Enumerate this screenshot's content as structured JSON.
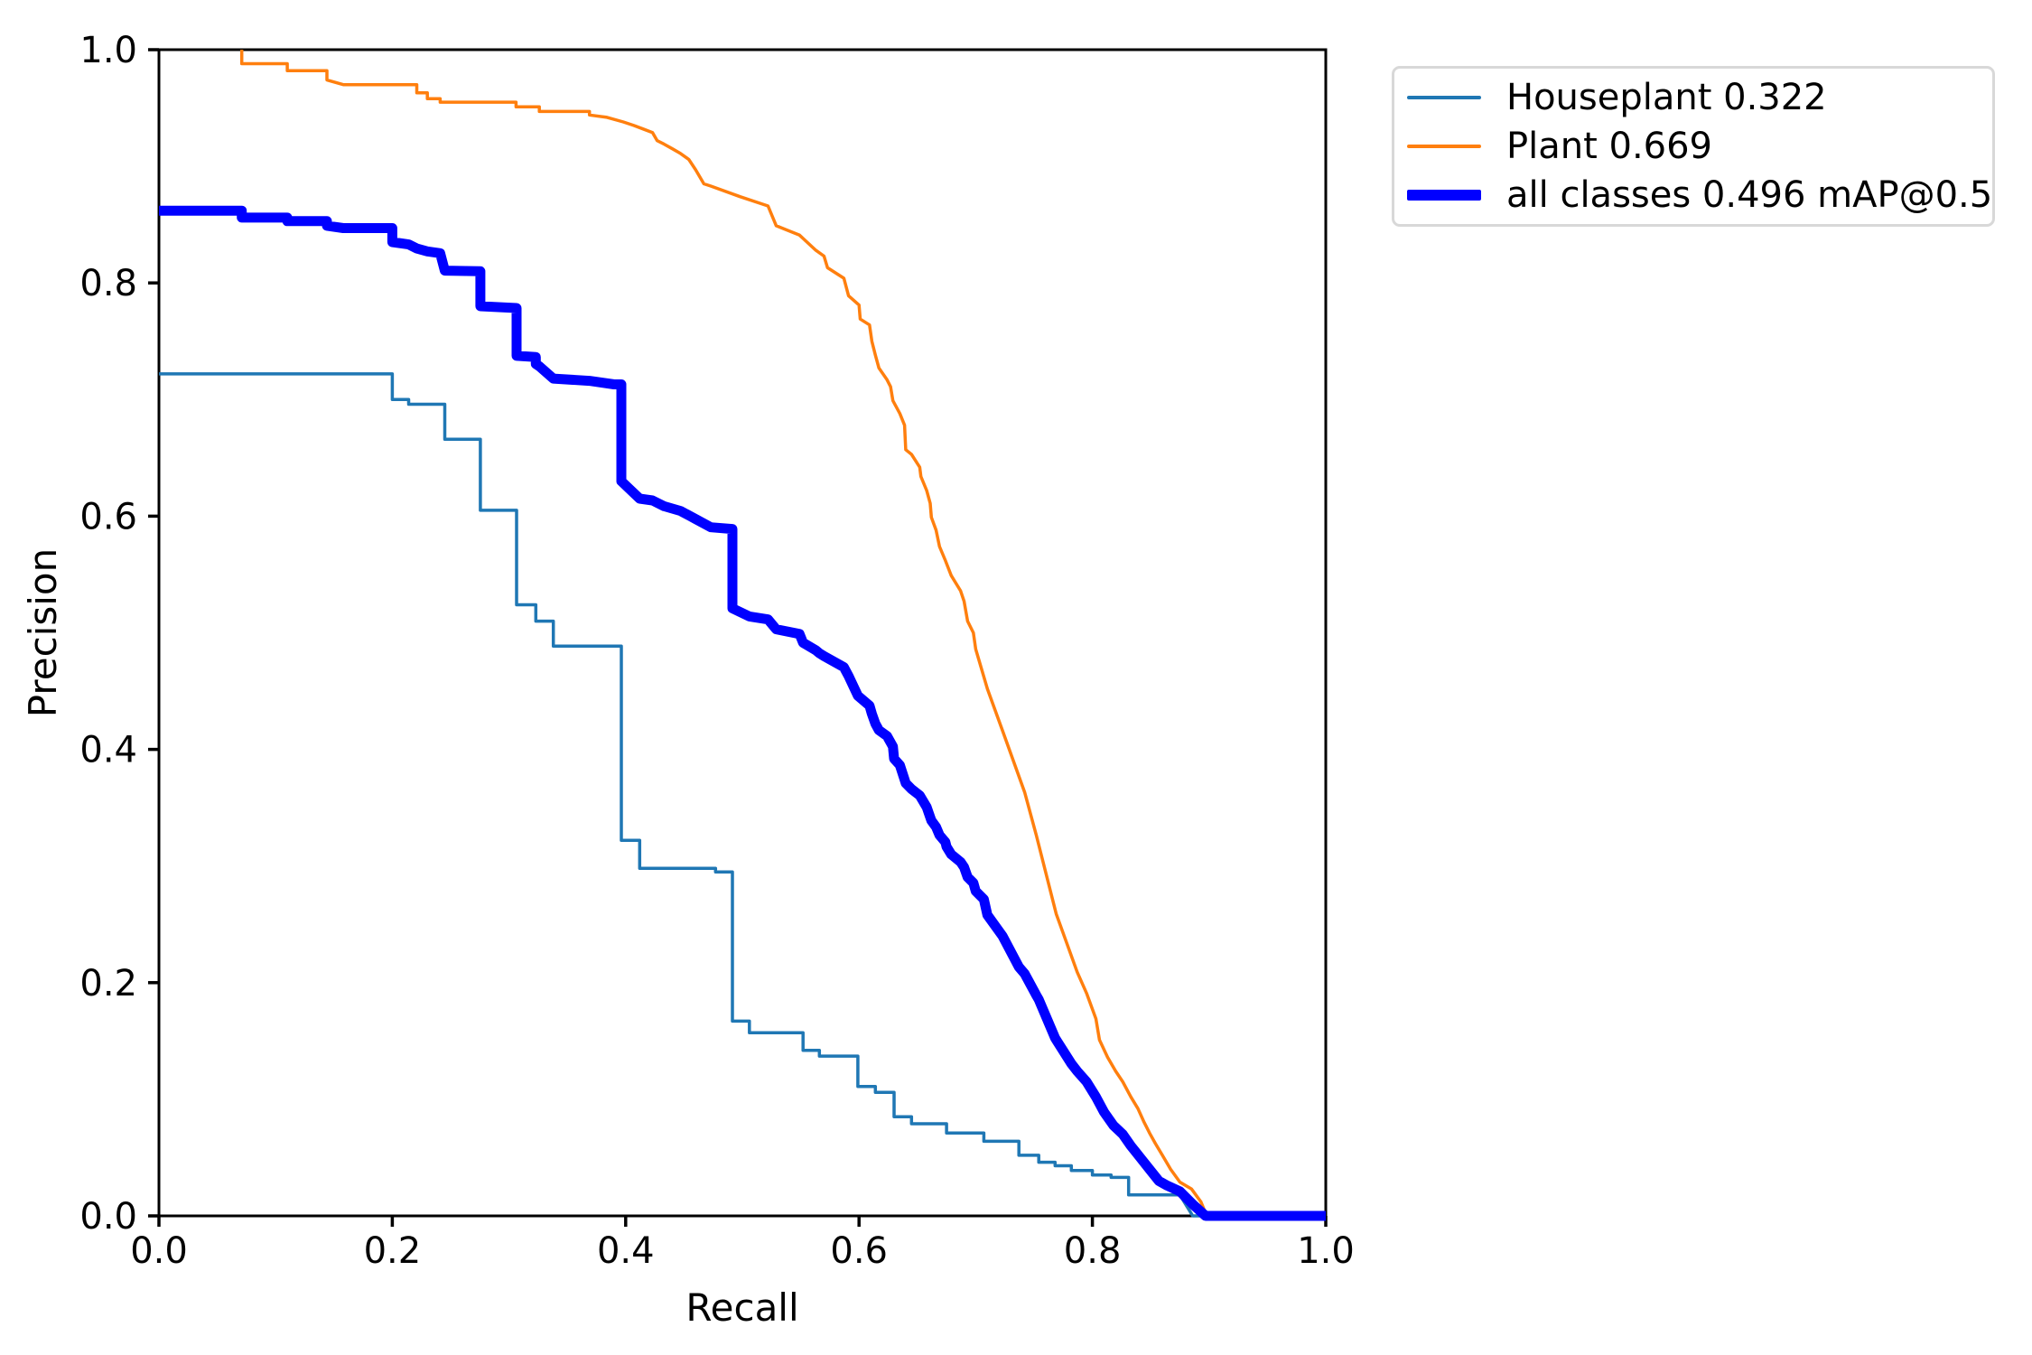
{
  "chart_data": {
    "type": "line",
    "subtype": "precision-recall-curve",
    "title": "",
    "xlabel": "Recall",
    "ylabel": "Precision",
    "xlim": [
      0.0,
      1.0
    ],
    "ylim": [
      0.0,
      1.0
    ],
    "xtick_labels": [
      "0.0",
      "0.2",
      "0.4",
      "0.6",
      "0.8",
      "1.0"
    ],
    "ytick_labels": [
      "0.0",
      "0.2",
      "0.4",
      "0.6",
      "0.8",
      "1.0"
    ],
    "grid": false,
    "legend_position": "outside-upper-right",
    "metric": "mAP@0.5",
    "map_at_05": 0.496,
    "series": [
      {
        "name": "Houseplant",
        "label": "Houseplant 0.322",
        "ap": 0.322,
        "color": "#1f77b4",
        "line_weight": "thin",
        "points": [
          [
            0,
            0.722
          ],
          [
            0.2,
            0.722
          ],
          [
            0.2,
            0.7
          ],
          [
            0.214,
            0.7
          ],
          [
            0.214,
            0.696
          ],
          [
            0.245,
            0.696
          ],
          [
            0.245,
            0.666
          ],
          [
            0.2755,
            0.666
          ],
          [
            0.2755,
            0.605
          ],
          [
            0.3065,
            0.605
          ],
          [
            0.3065,
            0.524
          ],
          [
            0.323,
            0.524
          ],
          [
            0.323,
            0.51
          ],
          [
            0.338,
            0.51
          ],
          [
            0.338,
            0.4885
          ],
          [
            0.3963,
            0.4885
          ],
          [
            0.3963,
            0.322
          ],
          [
            0.412,
            0.322
          ],
          [
            0.412,
            0.298
          ],
          [
            0.477,
            0.298
          ],
          [
            0.477,
            0.295
          ],
          [
            0.4915,
            0.295
          ],
          [
            0.4915,
            0.167
          ],
          [
            0.506,
            0.167
          ],
          [
            0.506,
            0.157
          ],
          [
            0.552,
            0.157
          ],
          [
            0.552,
            0.142
          ],
          [
            0.566,
            0.142
          ],
          [
            0.566,
            0.137
          ],
          [
            0.599,
            0.137
          ],
          [
            0.599,
            0.111
          ],
          [
            0.614,
            0.111
          ],
          [
            0.614,
            0.106
          ],
          [
            0.63,
            0.106
          ],
          [
            0.63,
            0.085
          ],
          [
            0.645,
            0.085
          ],
          [
            0.645,
            0.079
          ],
          [
            0.675,
            0.079
          ],
          [
            0.675,
            0.071
          ],
          [
            0.707,
            0.071
          ],
          [
            0.707,
            0.064
          ],
          [
            0.737,
            0.064
          ],
          [
            0.737,
            0.052
          ],
          [
            0.754,
            0.052
          ],
          [
            0.754,
            0.046
          ],
          [
            0.768,
            0.046
          ],
          [
            0.768,
            0.043
          ],
          [
            0.782,
            0.043
          ],
          [
            0.782,
            0.039
          ],
          [
            0.8,
            0.039
          ],
          [
            0.8,
            0.035
          ],
          [
            0.816,
            0.035
          ],
          [
            0.816,
            0.033
          ],
          [
            0.831,
            0.033
          ],
          [
            0.831,
            0.018
          ],
          [
            0.875,
            0.018
          ],
          [
            0.886,
            0.0
          ],
          [
            1.0,
            0.0
          ]
        ]
      },
      {
        "name": "Plant",
        "label": "Plant 0.669",
        "ap": 0.669,
        "color": "#ff7f0e",
        "line_weight": "thin",
        "points": [
          [
            0.071,
            1.0
          ],
          [
            0.071,
            0.988
          ],
          [
            0.11,
            0.988
          ],
          [
            0.11,
            0.982
          ],
          [
            0.144,
            0.982
          ],
          [
            0.144,
            0.974
          ],
          [
            0.158,
            0.97
          ],
          [
            0.221,
            0.97
          ],
          [
            0.221,
            0.963
          ],
          [
            0.23,
            0.963
          ],
          [
            0.23,
            0.958
          ],
          [
            0.241,
            0.958
          ],
          [
            0.241,
            0.955
          ],
          [
            0.306,
            0.955
          ],
          [
            0.306,
            0.951
          ],
          [
            0.326,
            0.951
          ],
          [
            0.326,
            0.947
          ],
          [
            0.369,
            0.947
          ],
          [
            0.369,
            0.944
          ],
          [
            0.384,
            0.942
          ],
          [
            0.398,
            0.938
          ],
          [
            0.407,
            0.935
          ],
          [
            0.415,
            0.932
          ],
          [
            0.423,
            0.929
          ],
          [
            0.427,
            0.922
          ],
          [
            0.433,
            0.919
          ],
          [
            0.44,
            0.915
          ],
          [
            0.447,
            0.911
          ],
          [
            0.454,
            0.906
          ],
          [
            0.46,
            0.897
          ],
          [
            0.467,
            0.885
          ],
          [
            0.473,
            0.883
          ],
          [
            0.498,
            0.874
          ],
          [
            0.522,
            0.866
          ],
          [
            0.529,
            0.849
          ],
          [
            0.549,
            0.841
          ],
          [
            0.563,
            0.828
          ],
          [
            0.57,
            0.823
          ],
          [
            0.573,
            0.813
          ],
          [
            0.587,
            0.804
          ],
          [
            0.591,
            0.789
          ],
          [
            0.6,
            0.781
          ],
          [
            0.601,
            0.769
          ],
          [
            0.609,
            0.764
          ],
          [
            0.611,
            0.75
          ],
          [
            0.614,
            0.738
          ],
          [
            0.617,
            0.727
          ],
          [
            0.624,
            0.717
          ],
          [
            0.627,
            0.711
          ],
          [
            0.629,
            0.699
          ],
          [
            0.635,
            0.688
          ],
          [
            0.639,
            0.678
          ],
          [
            0.64,
            0.657
          ],
          [
            0.645,
            0.653
          ],
          [
            0.652,
            0.642
          ],
          [
            0.653,
            0.634
          ],
          [
            0.658,
            0.622
          ],
          [
            0.661,
            0.611
          ],
          [
            0.662,
            0.599
          ],
          [
            0.666,
            0.588
          ],
          [
            0.669,
            0.574
          ],
          [
            0.674,
            0.562
          ],
          [
            0.679,
            0.549
          ],
          [
            0.687,
            0.536
          ],
          [
            0.69,
            0.527
          ],
          [
            0.693,
            0.51
          ],
          [
            0.698,
            0.5
          ],
          [
            0.7,
            0.486
          ],
          [
            0.71,
            0.452
          ],
          [
            0.723,
            0.416
          ],
          [
            0.742,
            0.363
          ],
          [
            0.752,
            0.326
          ],
          [
            0.769,
            0.259
          ],
          [
            0.787,
            0.209
          ],
          [
            0.795,
            0.191
          ],
          [
            0.803,
            0.169
          ],
          [
            0.806,
            0.151
          ],
          [
            0.813,
            0.136
          ],
          [
            0.82,
            0.124
          ],
          [
            0.826,
            0.115
          ],
          [
            0.833,
            0.102
          ],
          [
            0.839,
            0.092
          ],
          [
            0.844,
            0.081
          ],
          [
            0.849,
            0.071
          ],
          [
            0.854,
            0.062
          ],
          [
            0.86,
            0.052
          ],
          [
            0.867,
            0.04
          ],
          [
            0.875,
            0.029
          ],
          [
            0.885,
            0.023
          ],
          [
            0.893,
            0.012
          ],
          [
            0.898,
            0.0
          ],
          [
            1.0,
            0.0
          ]
        ]
      },
      {
        "name": "all classes",
        "label": "all classes 0.496 mAP@0.5",
        "ap": 0.496,
        "color": "#0000ff",
        "line_weight": "thick",
        "points": [
          [
            0,
            0.862
          ],
          [
            0.071,
            0.862
          ],
          [
            0.071,
            0.856
          ],
          [
            0.11,
            0.856
          ],
          [
            0.11,
            0.853
          ],
          [
            0.144,
            0.853
          ],
          [
            0.144,
            0.849
          ],
          [
            0.158,
            0.847
          ],
          [
            0.2,
            0.847
          ],
          [
            0.2,
            0.835
          ],
          [
            0.214,
            0.833
          ],
          [
            0.221,
            0.8295
          ],
          [
            0.23,
            0.827
          ],
          [
            0.241,
            0.8255
          ],
          [
            0.245,
            0.8105
          ],
          [
            0.2755,
            0.81
          ],
          [
            0.2755,
            0.78
          ],
          [
            0.3065,
            0.7785
          ],
          [
            0.3065,
            0.7375
          ],
          [
            0.323,
            0.7365
          ],
          [
            0.323,
            0.7305
          ],
          [
            0.326,
            0.7285
          ],
          [
            0.338,
            0.718
          ],
          [
            0.369,
            0.716
          ],
          [
            0.39,
            0.713
          ],
          [
            0.3963,
            0.713
          ],
          [
            0.3963,
            0.63
          ],
          [
            0.412,
            0.615
          ],
          [
            0.423,
            0.6135
          ],
          [
            0.433,
            0.6085
          ],
          [
            0.447,
            0.6045
          ],
          [
            0.46,
            0.5975
          ],
          [
            0.473,
            0.5905
          ],
          [
            0.4915,
            0.589
          ],
          [
            0.4915,
            0.521
          ],
          [
            0.506,
            0.514
          ],
          [
            0.522,
            0.5115
          ],
          [
            0.529,
            0.503
          ],
          [
            0.549,
            0.499
          ],
          [
            0.552,
            0.4915
          ],
          [
            0.563,
            0.485
          ],
          [
            0.566,
            0.4825
          ],
          [
            0.57,
            0.48
          ],
          [
            0.587,
            0.4705
          ],
          [
            0.591,
            0.463
          ],
          [
            0.599,
            0.446
          ],
          [
            0.609,
            0.4375
          ],
          [
            0.611,
            0.4305
          ],
          [
            0.614,
            0.422
          ],
          [
            0.617,
            0.4165
          ],
          [
            0.624,
            0.4115
          ],
          [
            0.629,
            0.4025
          ],
          [
            0.63,
            0.392
          ],
          [
            0.635,
            0.3865
          ],
          [
            0.64,
            0.371
          ],
          [
            0.645,
            0.366
          ],
          [
            0.652,
            0.3605
          ],
          [
            0.658,
            0.3505
          ],
          [
            0.662,
            0.339
          ],
          [
            0.666,
            0.3335
          ],
          [
            0.669,
            0.3265
          ],
          [
            0.674,
            0.3205
          ],
          [
            0.675,
            0.3165
          ],
          [
            0.679,
            0.31
          ],
          [
            0.687,
            0.3035
          ],
          [
            0.69,
            0.299
          ],
          [
            0.693,
            0.2905
          ],
          [
            0.698,
            0.2855
          ],
          [
            0.7,
            0.2785
          ],
          [
            0.707,
            0.2715
          ],
          [
            0.71,
            0.258
          ],
          [
            0.723,
            0.24
          ],
          [
            0.737,
            0.2135
          ],
          [
            0.742,
            0.2075
          ],
          [
            0.752,
            0.189
          ],
          [
            0.754,
            0.1855
          ],
          [
            0.768,
            0.1525
          ],
          [
            0.769,
            0.151
          ],
          [
            0.782,
            0.1305
          ],
          [
            0.787,
            0.124
          ],
          [
            0.795,
            0.115
          ],
          [
            0.803,
            0.102
          ],
          [
            0.81,
            0.089
          ],
          [
            0.818,
            0.0775
          ],
          [
            0.826,
            0.07
          ],
          [
            0.833,
            0.06
          ],
          [
            0.841,
            0.05
          ],
          [
            0.849,
            0.04
          ],
          [
            0.857,
            0.03
          ],
          [
            0.864,
            0.026
          ],
          [
            0.875,
            0.021
          ],
          [
            0.879,
            0.017
          ],
          [
            0.887,
            0.009
          ],
          [
            0.897,
            0.0
          ],
          [
            1.0,
            0.0
          ]
        ]
      }
    ],
    "axes_color": "#000000",
    "legend_border_color": "#d8d8d8",
    "background_color": "#ffffff"
  }
}
